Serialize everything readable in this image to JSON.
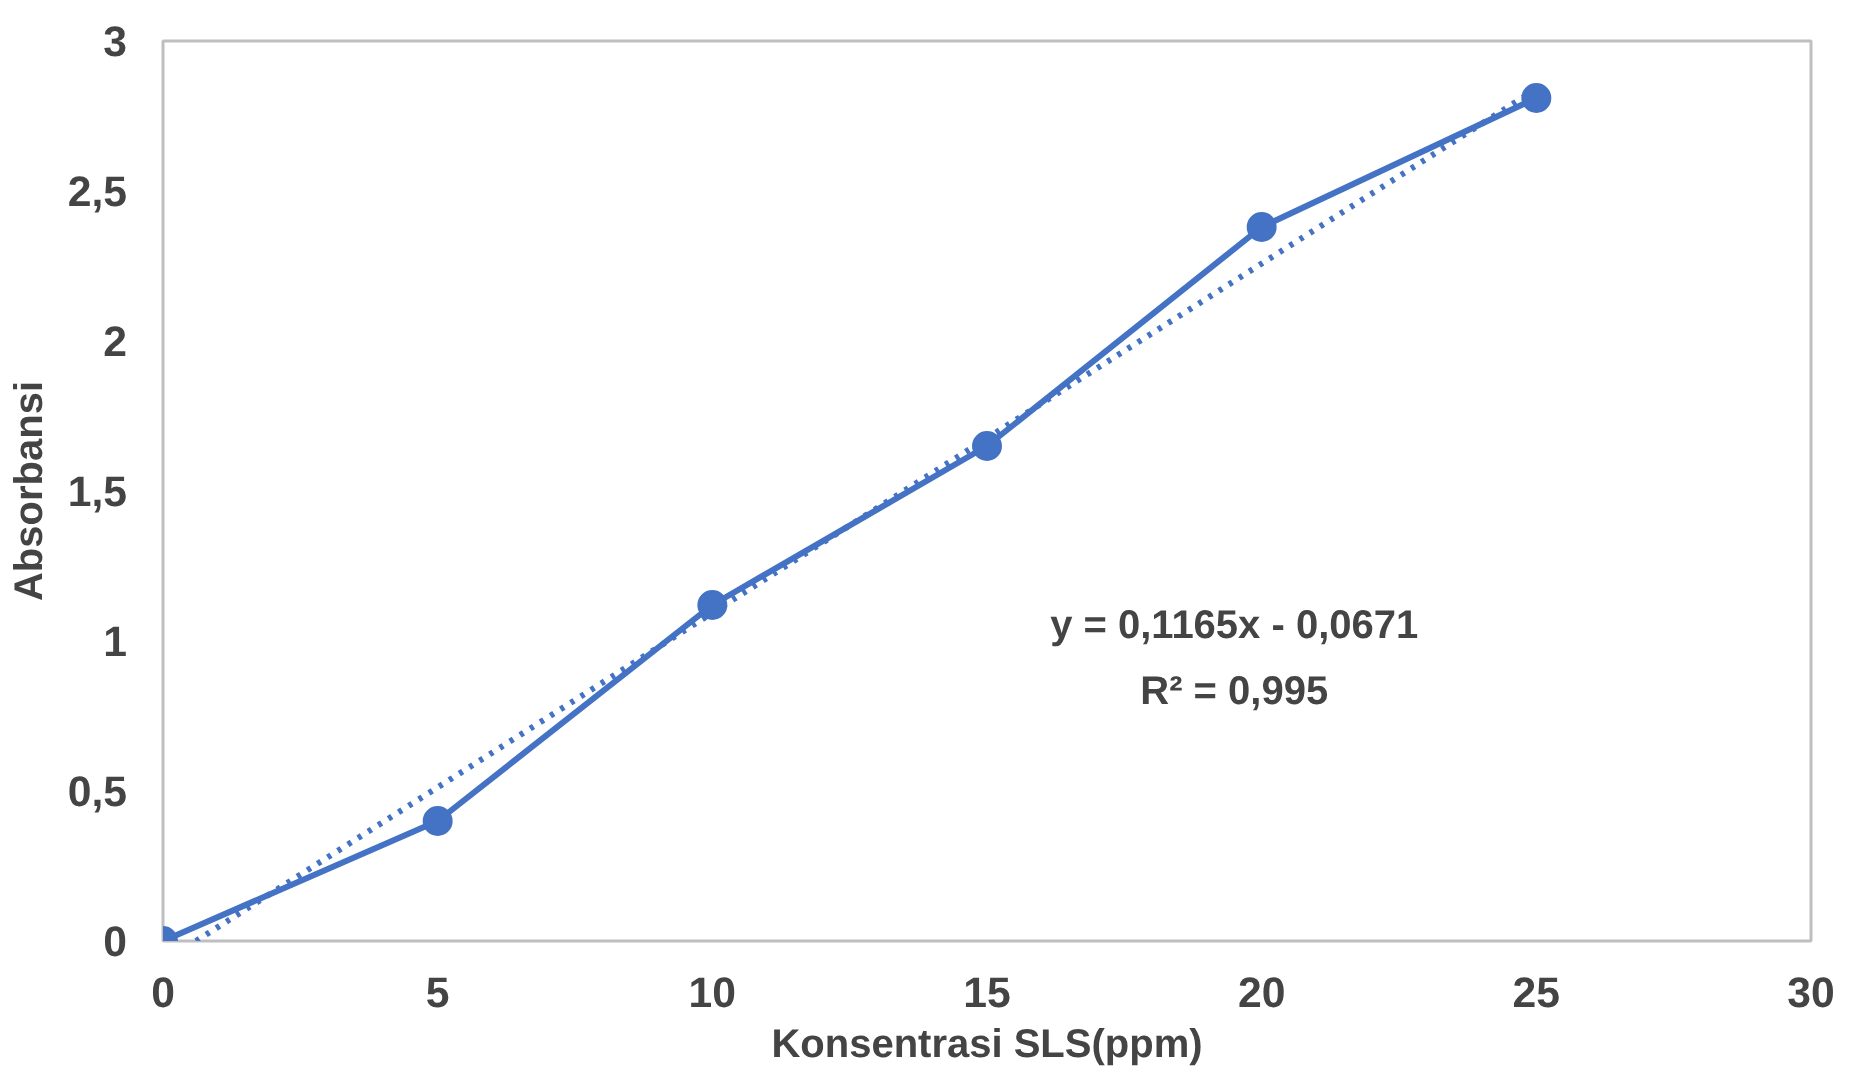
{
  "chart_data": {
    "type": "line",
    "xlabel": "Konsentrasi SLS(ppm)",
    "ylabel": "Absorbansi",
    "x": [
      0,
      5,
      10,
      15,
      20,
      25
    ],
    "series": [
      {
        "color": "#4472c4",
        "values": [
          0,
          0.4,
          1.12,
          1.65,
          2.38,
          2.81
        ],
        "marker": "circle",
        "line_style": "solid"
      },
      {
        "type": "line",
        "color": "#4472c4",
        "x": [
          0.6,
          25
        ],
        "values": [
          0,
          2.84
        ],
        "marker": "none",
        "line_style": "dotted"
      }
    ],
    "annotations": [
      "y = 0,1165x - 0,0671\nR² = 0,995"
    ],
    "xlim": [
      0,
      30
    ],
    "ylim": [
      0,
      3
    ],
    "xticks": [
      0,
      5,
      10,
      15,
      20,
      25,
      30
    ],
    "yticks": [
      0,
      {
        "value": 0.5,
        "label": "0,5"
      },
      1,
      {
        "value": 1.5,
        "label": "1,5"
      },
      2,
      {
        "value": 2.5,
        "label": "2,5"
      },
      3
    ],
    "grid": false
  }
}
